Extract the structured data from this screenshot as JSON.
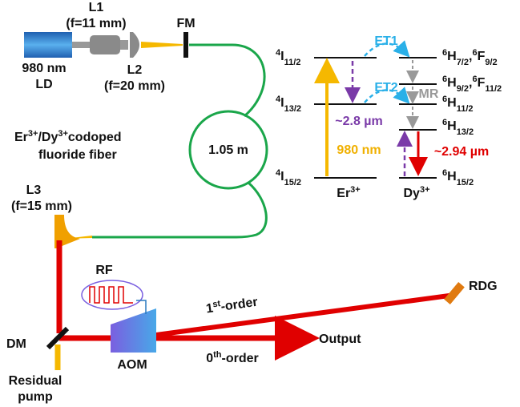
{
  "l1": {
    "name": "L1",
    "focal": "(f=11 mm)"
  },
  "ld": {
    "line1": "980 nm",
    "line2": "LD"
  },
  "l2": {
    "name": "L2",
    "focal": "(f=20 mm)"
  },
  "fm": "FM",
  "fiber": {
    "line1": [
      {
        "text": "Er"
      },
      {
        "sup": "3+"
      },
      {
        "text": "/Dy"
      },
      {
        "sup": "3+"
      },
      {
        "text": "codoped"
      }
    ],
    "line2": "fluoride fiber",
    "length": "1.05 m"
  },
  "l3": {
    "name": "L3",
    "focal": "(f=15 mm)"
  },
  "rf": "RF",
  "aom": "AOM",
  "dm": "DM",
  "rdg": "RDG",
  "output": "Output",
  "first_order": [
    {
      "text": "1"
    },
    {
      "sup": "st"
    },
    {
      "text": "-order"
    }
  ],
  "zeroth_order": [
    {
      "text": "0"
    },
    {
      "sup": "th"
    },
    {
      "text": "-order"
    }
  ],
  "residual_pump": {
    "line1": "Residual",
    "line2": "pump"
  },
  "energy": {
    "er_levels": [
      [
        {
          "sup": "4"
        },
        {
          "text": "I"
        },
        {
          "sub": "11/2"
        }
      ],
      [
        {
          "sup": "4"
        },
        {
          "text": "I"
        },
        {
          "sub": "13/2"
        }
      ],
      [
        {
          "sup": "4"
        },
        {
          "text": "I"
        },
        {
          "sub": "15/2"
        }
      ]
    ],
    "dy_levels": [
      [
        {
          "sup": "6"
        },
        {
          "text": "H"
        },
        {
          "sub": "7/2"
        },
        {
          "text": ","
        },
        {
          "sup": "6"
        },
        {
          "text": "F"
        },
        {
          "sub": "9/2"
        }
      ],
      [
        {
          "sup": "6"
        },
        {
          "text": "H"
        },
        {
          "sub": "9/2"
        },
        {
          "text": ","
        },
        {
          "sup": "6"
        },
        {
          "text": "F"
        },
        {
          "sub": "11/2"
        }
      ],
      [
        {
          "sup": "6"
        },
        {
          "text": "H"
        },
        {
          "sub": "11/2"
        }
      ],
      [
        {
          "sup": "6"
        },
        {
          "text": "H"
        },
        {
          "sub": "13/2"
        }
      ],
      [
        {
          "sup": "6"
        },
        {
          "text": "H"
        },
        {
          "sub": "15/2"
        }
      ]
    ],
    "er_ion": [
      {
        "text": "Er"
      },
      {
        "sup": "3+"
      }
    ],
    "dy_ion": [
      {
        "text": "Dy"
      },
      {
        "sup": "3+"
      }
    ],
    "pump": "980 nm",
    "et1": "ET1",
    "et2": "ET2",
    "mr": "MR",
    "emission_er": "~2.8 µm",
    "emission_dy": "~2.94 µm"
  }
}
